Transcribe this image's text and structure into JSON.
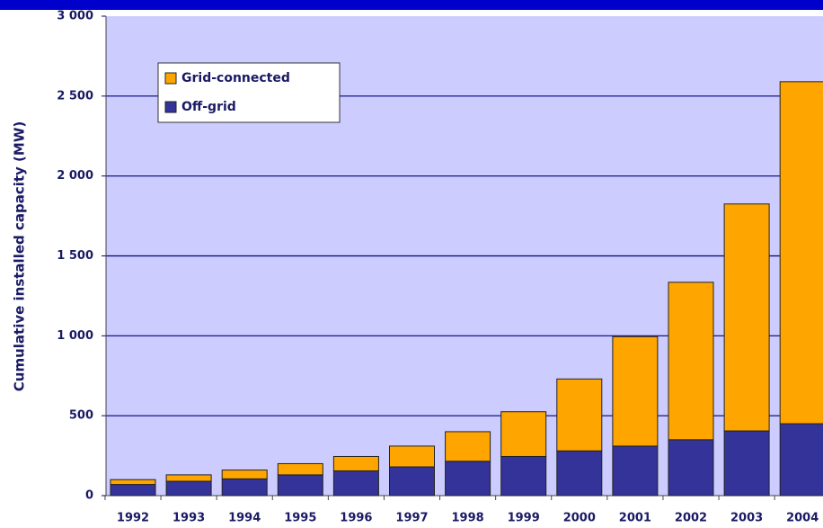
{
  "chart_data": {
    "type": "stacked_bar",
    "y_label": "Cumulative installed capacity (MW)",
    "categories": [
      "1992",
      "1993",
      "1994",
      "1995",
      "1996",
      "1997",
      "1998",
      "1999",
      "2000",
      "2001",
      "2002",
      "2003",
      "2004"
    ],
    "series": [
      {
        "name": "Off-grid",
        "color": "#333399",
        "values": [
          70,
          90,
          105,
          130,
          155,
          180,
          215,
          245,
          280,
          310,
          350,
          405,
          450
        ]
      },
      {
        "name": "Grid-connected",
        "color": "#ffa500",
        "values": [
          30,
          40,
          55,
          70,
          90,
          130,
          185,
          280,
          450,
          685,
          985,
          1420,
          2140
        ]
      }
    ],
    "ylim": [
      0,
      3000
    ],
    "yticks": [
      0,
      500,
      {
        "value": 1000,
        "label": "1 000"
      },
      {
        "value": 1500,
        "label": "1 500"
      },
      {
        "value": 2000,
        "label": "2 000"
      },
      {
        "value": 2500,
        "label": "2 500"
      },
      {
        "value": 3000,
        "label": "3 000"
      }
    ],
    "grid": true,
    "legend": "upper left"
  }
}
